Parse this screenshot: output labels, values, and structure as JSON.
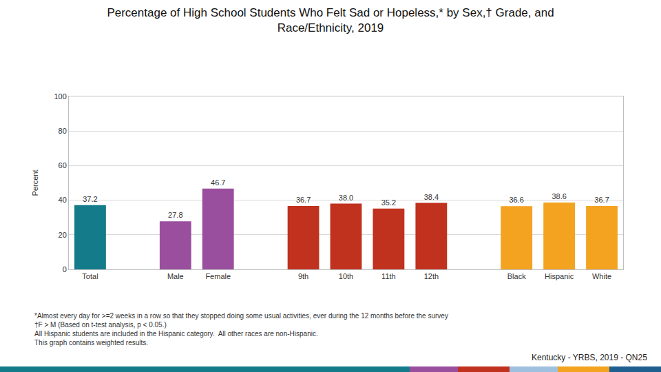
{
  "chart_data": {
    "type": "bar",
    "title": "Percentage of High School Students Who Felt Sad or Hopeless,* by Sex,† Grade, and\nRace/Ethnicity, 2019",
    "y_label": "Percent",
    "categories": [
      "Total",
      null,
      "Male",
      "Female",
      null,
      "9th",
      "10th",
      "11th",
      "12th",
      null,
      "Black",
      "Hispanic",
      "White"
    ],
    "values": [
      37.2,
      null,
      27.8,
      46.7,
      null,
      36.7,
      38.0,
      35.2,
      38.4,
      null,
      36.6,
      38.6,
      36.7
    ],
    "value_labels": [
      "37.2",
      null,
      "27.8",
      "46.7",
      null,
      "36.7",
      "38.0",
      "35.2",
      "38.4",
      null,
      "36.6",
      "38.6",
      "36.7"
    ],
    "colors": [
      "#137b8a",
      null,
      "#9a4e9e",
      "#9a4e9e",
      null,
      "#c0311e",
      "#c0311e",
      "#c0311e",
      "#c0311e",
      null,
      "#f4a321",
      "#f4a321",
      "#f4a321"
    ],
    "ylim": [
      0,
      100
    ],
    "yticks": [
      0,
      20,
      40,
      60,
      80,
      100
    ],
    "grid": true,
    "data_labels": true,
    "footnotes": [
      "*Almost every day for >=2 weeks in a row so that they stopped doing some usual activities, ever during the 12 months before the survey",
      "†F > M (Based on t-test analysis, p < 0.05.)",
      "All Hispanic students are included in the Hispanic category.  All other races are non-Hispanic.",
      "This graph contains weighted results."
    ],
    "source": "Kentucky - YRBS, 2019 - QN25"
  }
}
